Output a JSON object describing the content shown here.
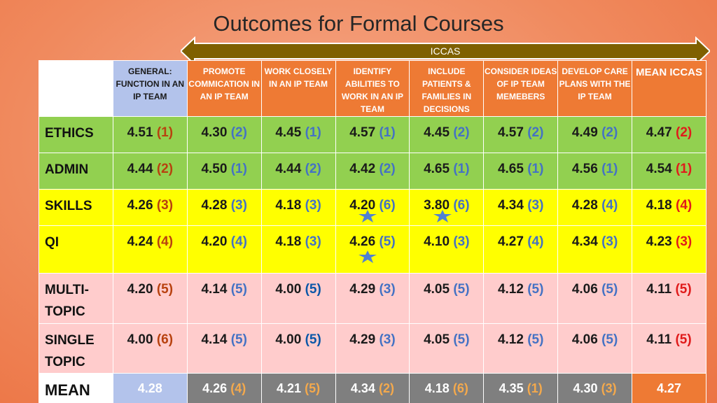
{
  "title": "Outcomes for Formal Courses",
  "arrow_label": "ICCAS",
  "headers": [
    "GENERAL: FUNCTION IN AN IP TEAM",
    "PROMOTE COMMICATION IN AN IP TEAM",
    "WORK CLOSELY IN AN IP TEAM",
    "IDENTIFY ABILITIES TO WORK IN AN IP TEAM",
    "INCLUDE PATIENTS & FAMILIES IN DECISIONS",
    "CONSIDER IDEAS OF IP TEAM MEMEBERS",
    "DEVELOP CARE PLANS WITH THE IP TEAM",
    "MEAN ICCAS"
  ],
  "rows": [
    {
      "label": "ETHICS",
      "cells": [
        [
          "4.51",
          "(1)"
        ],
        [
          "4.30",
          "(2)"
        ],
        [
          "4.45",
          "(1)"
        ],
        [
          "4.57",
          "(1)"
        ],
        [
          "4.45",
          "(2)"
        ],
        [
          "4.57",
          "(2)"
        ],
        [
          "4.49",
          "(2)"
        ],
        [
          "4.47",
          "(2)"
        ]
      ]
    },
    {
      "label": "ADMIN",
      "cells": [
        [
          "4.44",
          "(2)"
        ],
        [
          "4.50",
          "(1)"
        ],
        [
          "4.44",
          "(2)"
        ],
        [
          "4.42",
          "(2)"
        ],
        [
          "4.65",
          "(1)"
        ],
        [
          "4.65",
          "(1)"
        ],
        [
          "4.56",
          "(1)"
        ],
        [
          "4.54",
          "(1)"
        ]
      ]
    },
    {
      "label": "SKILLS",
      "cells": [
        [
          "4.26",
          "(3)"
        ],
        [
          "4.28",
          "(3)"
        ],
        [
          "4.18",
          "(3)"
        ],
        [
          "4.20",
          "(6)"
        ],
        [
          "3.80",
          "(6)"
        ],
        [
          "4.34",
          "(3)"
        ],
        [
          "4.28",
          "(4)"
        ],
        [
          "4.18",
          "(4)"
        ]
      ]
    },
    {
      "label": "QI",
      "cells": [
        [
          "4.24",
          "(4)"
        ],
        [
          "4.20",
          "(4)"
        ],
        [
          "4.18",
          "(3)"
        ],
        [
          "4.26",
          "(5)"
        ],
        [
          "4.10",
          "(3)"
        ],
        [
          "4.27",
          "(4)"
        ],
        [
          "4.34",
          "(3)"
        ],
        [
          "4.23",
          "(3)"
        ]
      ]
    },
    {
      "label": "MULTI-TOPIC",
      "cells": [
        [
          "4.20",
          "(5)"
        ],
        [
          "4.14",
          "(5)"
        ],
        [
          "4.00",
          "(5)"
        ],
        [
          "4.29",
          "(3)"
        ],
        [
          "4.05",
          "(5)"
        ],
        [
          "4.12",
          "(5)"
        ],
        [
          "4.06",
          "(5)"
        ],
        [
          "4.11",
          "(5)"
        ]
      ]
    },
    {
      "label": "SINGLE TOPIC",
      "cells": [
        [
          "4.00",
          "(6)"
        ],
        [
          "4.14",
          "(5)"
        ],
        [
          "4.00",
          "(5)"
        ],
        [
          "4.29",
          "(3)"
        ],
        [
          "4.05",
          "(5)"
        ],
        [
          "4.12",
          "(5)"
        ],
        [
          "4.06",
          "(5)"
        ],
        [
          "4.11",
          "(5)"
        ]
      ]
    }
  ],
  "mean_row": {
    "label": "MEAN",
    "general": "4.28",
    "cells": [
      [
        "4.26",
        "(4)"
      ],
      [
        "4.21",
        "(5)"
      ],
      [
        "4.34",
        "(2)"
      ],
      [
        "4.18",
        "(6)"
      ],
      [
        "4.35",
        "(1)"
      ],
      [
        "4.30",
        "(3)"
      ]
    ],
    "iccas": "4.27"
  },
  "colors": {
    "background": "#f08a5e",
    "header_orange": "#ee7a34",
    "header_general": "#b3c3eb",
    "green": "#92d050",
    "yellow": "#ffff00",
    "pink": "#ffcccc",
    "gray": "#7f7f7f",
    "arrow": "#7f6000"
  },
  "markers": [
    "star-icon",
    "star-icon",
    "star-icon"
  ]
}
